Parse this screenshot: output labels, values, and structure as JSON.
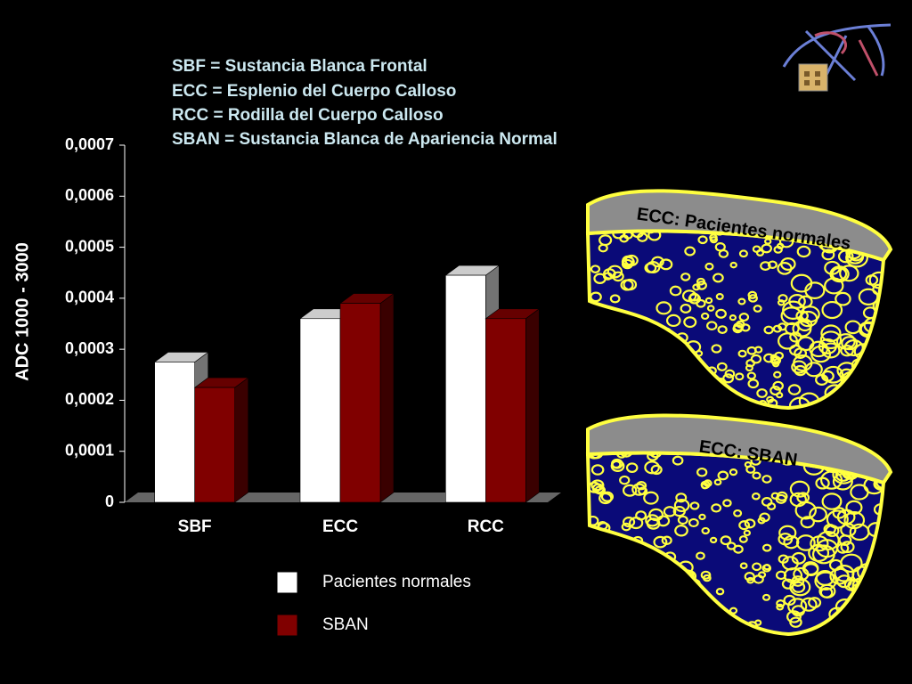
{
  "header": {
    "lines": [
      "SBF = Sustancia Blanca Frontal",
      "ECC = Esplenio del Cuerpo Calloso",
      "RCC = Rodilla del Cuerpo Calloso",
      "SBAN = Sustancia Blanca de Apariencia Normal"
    ]
  },
  "chart_data": {
    "type": "bar3d",
    "y_label": "ADC 1000 - 3000",
    "categories": [
      "SBF",
      "ECC",
      "RCC"
    ],
    "series": [
      {
        "name": "Pacientes normales",
        "color": "#ffffff",
        "values": [
          0.000275,
          0.00036,
          0.000445
        ]
      },
      {
        "name": "SBAN",
        "color": "#800000",
        "values": [
          0.000225,
          0.00039,
          0.00036
        ]
      }
    ],
    "ylim": [
      0,
      0.0007
    ],
    "yticks": [
      0,
      {
        "value": 0.0001,
        "label": "0,0001"
      },
      {
        "value": 0.0002,
        "label": "0,0002"
      },
      {
        "value": 0.0003,
        "label": "0,0003"
      },
      {
        "value": 0.0004,
        "label": "0,0004"
      },
      {
        "value": 0.0005,
        "label": "0,0005"
      },
      {
        "value": 0.0006,
        "label": "0,0006"
      },
      {
        "value": 0.0007,
        "label": "0,0007"
      }
    ]
  },
  "diagrams": [
    {
      "label": "ECC: Pacientes normales"
    },
    {
      "label": "ECC: SBAN"
    }
  ]
}
